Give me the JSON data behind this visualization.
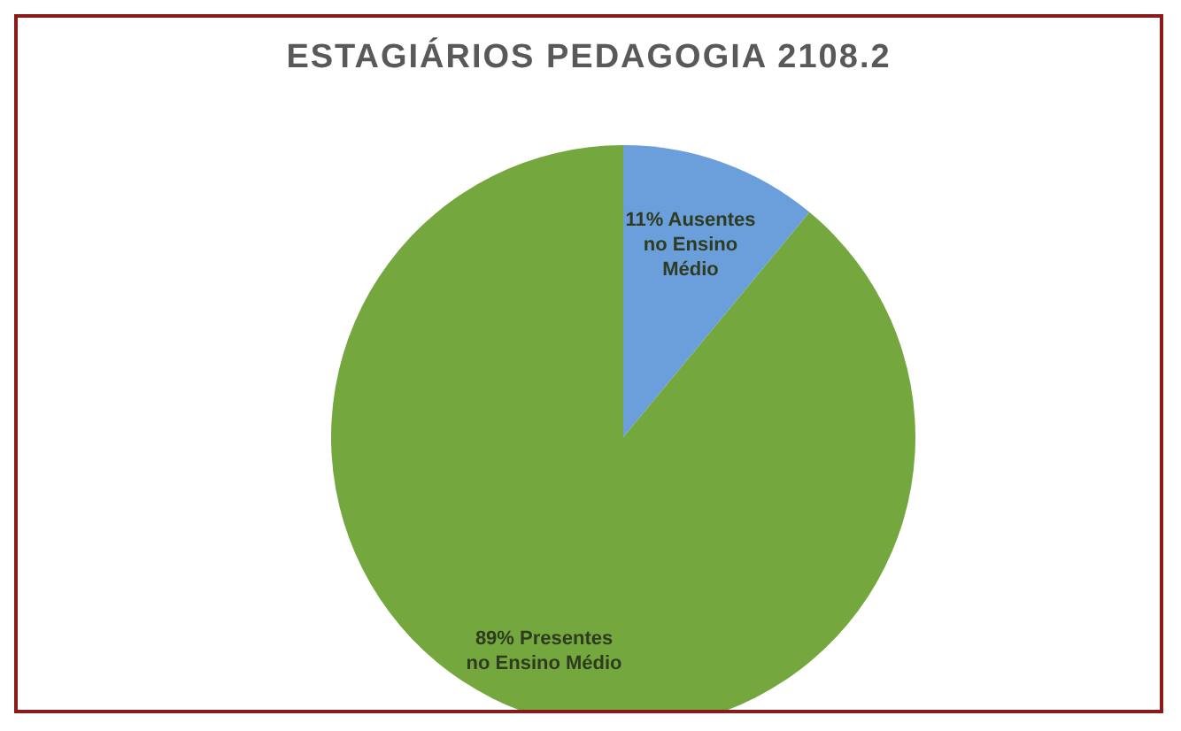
{
  "chart_data": {
    "type": "pie",
    "title": "ESTAGIÁRIOS PEDAGOGIA 2108.2",
    "categories": [
      "Ausentes no Ensino Médio",
      "Presentes no Ensino Médio"
    ],
    "values": [
      11,
      89
    ],
    "value_labels": [
      "11%",
      "89%"
    ],
    "colors": [
      "#6a9fdc",
      "#74a83f"
    ]
  }
}
